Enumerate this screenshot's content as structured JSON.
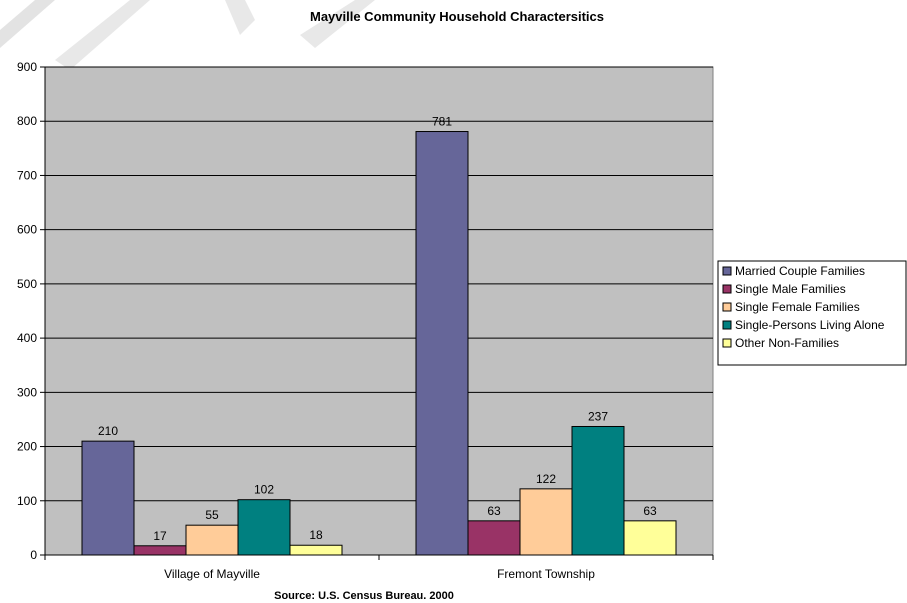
{
  "chart_data": {
    "type": "bar",
    "title": "Mayville Community Household Charactersitics",
    "footer": "Source: U.S. Census Bureau. 2000",
    "categories": [
      "Village of Mayville",
      "Fremont Township"
    ],
    "series": [
      {
        "name": "Married Couple Families",
        "color": "#666699",
        "values": [
          210,
          781
        ]
      },
      {
        "name": "Single Male Families",
        "color": "#993366",
        "values": [
          17,
          63
        ]
      },
      {
        "name": "Single Female Families",
        "color": "#ffcc99",
        "values": [
          55,
          122
        ]
      },
      {
        "name": "Single-Persons Living Alone",
        "color": "#008080",
        "values": [
          102,
          237
        ]
      },
      {
        "name": "Other Non-Families",
        "color": "#ffff99",
        "values": [
          18,
          63
        ]
      }
    ],
    "ylim": [
      0,
      900
    ],
    "yticks": [
      "0",
      "100",
      "200",
      "300",
      "400",
      "500",
      "600",
      "700",
      "800",
      "900"
    ],
    "grid": true,
    "plot_background": "#c0c0c0",
    "legend_position": "right"
  }
}
